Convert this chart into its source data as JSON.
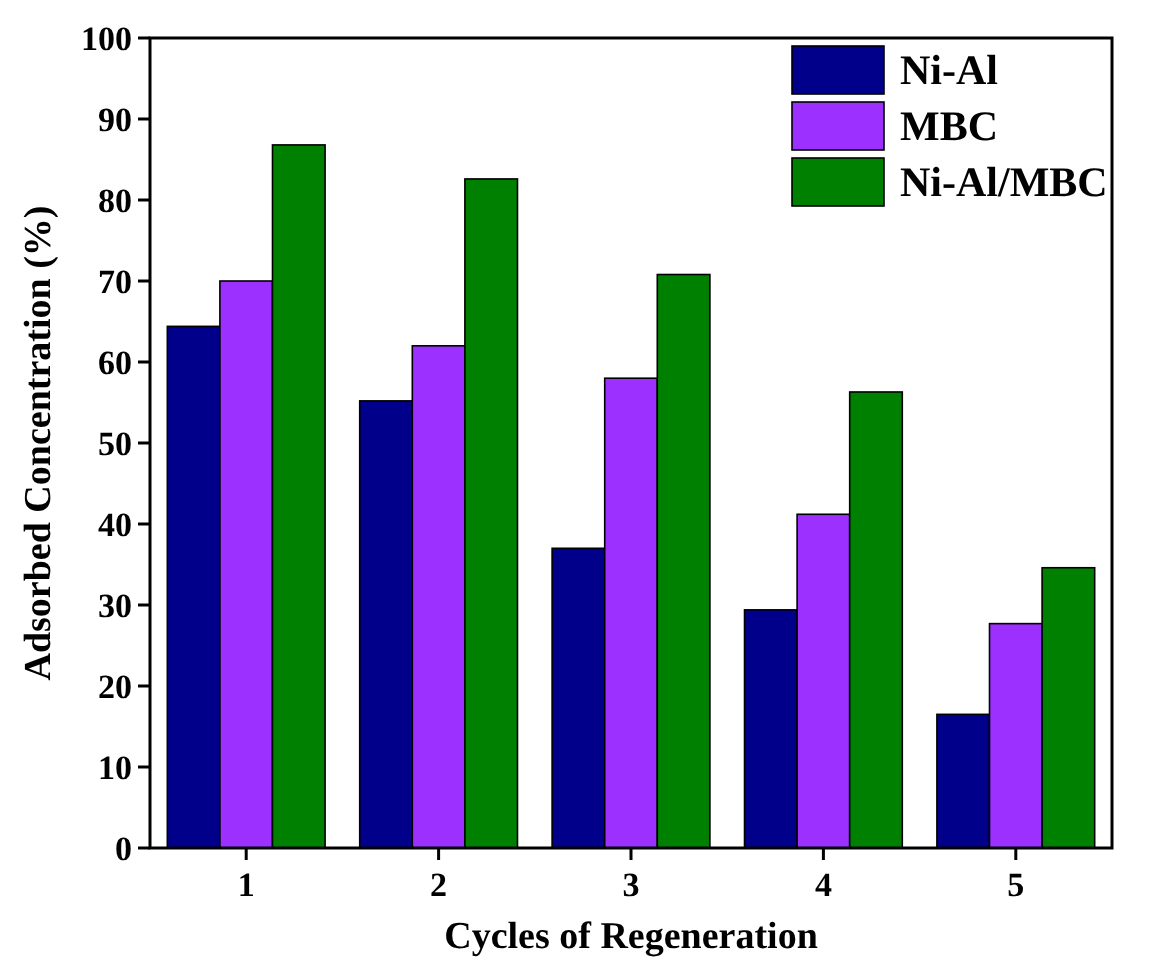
{
  "chart_data": {
    "type": "bar",
    "xlabel": "Cycles of Regeneration",
    "ylabel": "Adsorbed Concentration (%)",
    "categories": [
      "1",
      "2",
      "3",
      "4",
      "5"
    ],
    "series": [
      {
        "name": "Ni-Al",
        "color": "#00008b",
        "values": [
          64.4,
          55.2,
          37,
          29.4,
          16.5
        ]
      },
      {
        "name": "MBC",
        "color": "#9b30ff",
        "values": [
          70,
          62,
          58,
          41.2,
          27.7
        ]
      },
      {
        "name": "Ni-Al/MBC",
        "color": "#008000",
        "values": [
          86.8,
          82.6,
          70.8,
          56.3,
          34.6
        ]
      }
    ],
    "ylim": [
      0,
      100
    ],
    "yticks": [
      0,
      10,
      20,
      30,
      40,
      50,
      60,
      70,
      80,
      90,
      100
    ],
    "legend": "top right",
    "grid": false
  }
}
